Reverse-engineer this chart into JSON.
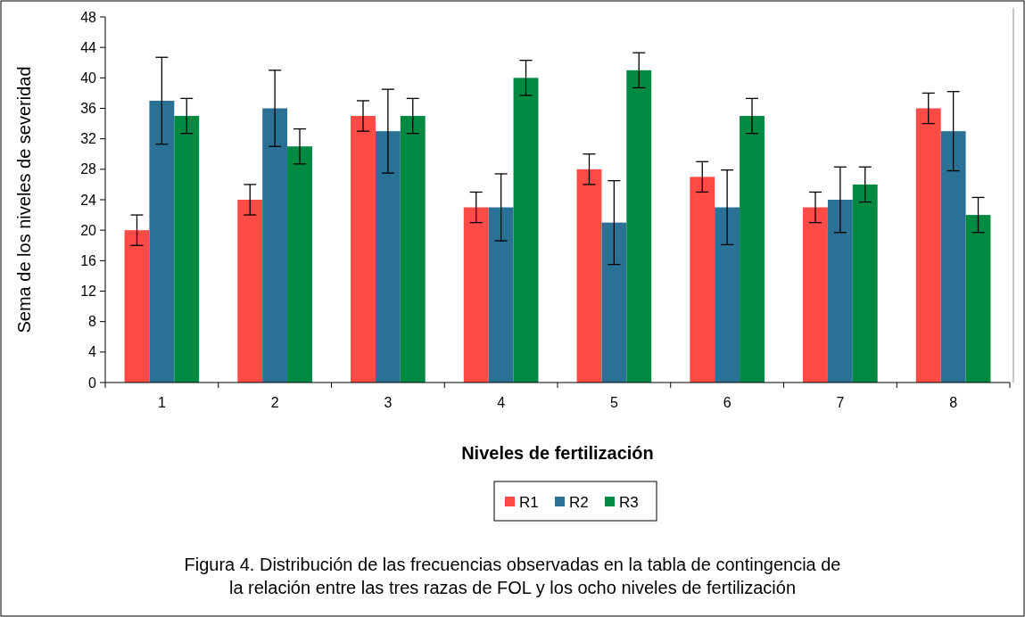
{
  "chart_data": {
    "type": "bar",
    "categories": [
      "1",
      "2",
      "3",
      "4",
      "5",
      "6",
      "7",
      "8"
    ],
    "series": [
      {
        "name": "R1",
        "color": "#ff4a45",
        "values": [
          20,
          24,
          35,
          23,
          28,
          27,
          23,
          36
        ],
        "errors": [
          2,
          2,
          2,
          2,
          2,
          2,
          2,
          2
        ]
      },
      {
        "name": "R2",
        "color": "#2b7196",
        "values": [
          37,
          36,
          33,
          23,
          21,
          23,
          24,
          33
        ],
        "errors": [
          5.7,
          5,
          5.5,
          4.4,
          5.5,
          4.9,
          4.3,
          5.2
        ]
      },
      {
        "name": "R3",
        "color": "#008940",
        "values": [
          35,
          31,
          35,
          40,
          41,
          35,
          26,
          22
        ],
        "errors": [
          2.3,
          2.3,
          2.3,
          2.3,
          2.3,
          2.3,
          2.3,
          2.3
        ]
      }
    ],
    "xlabel": "Niveles de fertilización",
    "ylabel": "Sema de los niveles de severidad",
    "ylim": [
      0,
      48
    ],
    "yticks": [
      0,
      4,
      8,
      12,
      16,
      20,
      24,
      28,
      32,
      36,
      40,
      44,
      48
    ],
    "grid": false,
    "legend": "bottom",
    "annotations": [
      "Figura 4. Distribución de las frecuencias  observadas en la tabla de contingencia de\nla relación entre las tres razas de FOL y los ocho niveles de fertilización"
    ]
  }
}
